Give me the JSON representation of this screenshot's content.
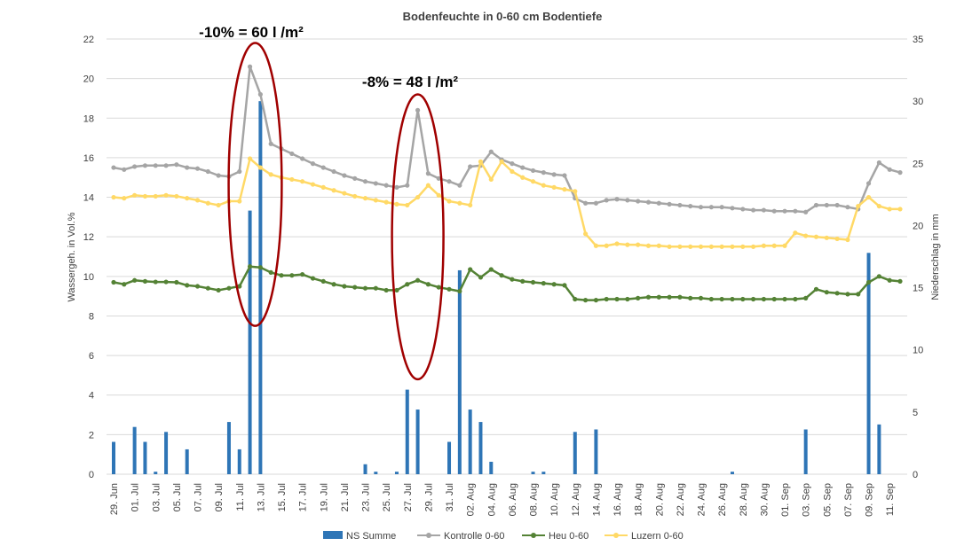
{
  "chart_data": {
    "type": "bar+line",
    "title": "Bodenfeuchte in 0-60 cm Bodentiefe",
    "ylabel_left": "Wassergeh. in  Vol.%",
    "ylabel_right": "Niederschlag in mm",
    "ylim_left": [
      0,
      22
    ],
    "ylim_right": [
      0,
      35
    ],
    "yticks_left": [
      "0",
      "2",
      "4",
      "6",
      "8",
      "10",
      "12",
      "14",
      "16",
      "18",
      "20",
      "22"
    ],
    "yticks_right": [
      "0",
      "5",
      "10",
      "15",
      "20",
      "25",
      "30",
      "35"
    ],
    "dates": [
      "29. Jun",
      "30. Jun",
      "01. Jul",
      "02. Jul",
      "03. Jul",
      "04. Jul",
      "05. Jul",
      "06. Jul",
      "07. Jul",
      "08. Jul",
      "09. Jul",
      "10. Jul",
      "11. Jul",
      "12. Jul",
      "13. Jul",
      "14. Jul",
      "15. Jul",
      "16. Jul",
      "17. Jul",
      "18. Jul",
      "19. Jul",
      "20. Jul",
      "21. Jul",
      "22. Jul",
      "23. Jul",
      "24. Jul",
      "25. Jul",
      "26. Jul",
      "27. Jul",
      "28. Jul",
      "29. Jul",
      "30. Jul",
      "31. Jul",
      "01. Aug",
      "02. Aug",
      "03. Aug",
      "04. Aug",
      "05. Aug",
      "06. Aug",
      "07. Aug",
      "08. Aug",
      "09. Aug",
      "10. Aug",
      "11. Aug",
      "12. Aug",
      "13. Aug",
      "14. Aug",
      "15. Aug",
      "16. Aug",
      "17. Aug",
      "18. Aug",
      "19. Aug",
      "20. Aug",
      "21. Aug",
      "22. Aug",
      "23. Aug",
      "24. Aug",
      "25. Aug",
      "26. Aug",
      "27. Aug",
      "28. Aug",
      "29. Aug",
      "30. Aug",
      "31. Aug",
      "01. Sep",
      "02. Sep",
      "03. Sep",
      "04. Sep",
      "05. Sep",
      "06. Sep",
      "07. Sep",
      "08. Sep",
      "09. Sep",
      "10. Sep",
      "11. Sep",
      "12. Sep"
    ],
    "xtick_labels": [
      "29. Jun",
      "01. Jul",
      "03. Jul",
      "05. Jul",
      "07. Jul",
      "09. Jul",
      "11. Jul",
      "13. Jul",
      "15. Jul",
      "17. Jul",
      "19. Jul",
      "21. Jul",
      "23. Jul",
      "25. Jul",
      "27. Jul",
      "29. Jul",
      "31. Jul",
      "02. Aug",
      "04. Aug",
      "06. Aug",
      "08. Aug",
      "10. Aug",
      "12. Aug",
      "14. Aug",
      "16. Aug",
      "18. Aug",
      "20. Aug",
      "22. Aug",
      "24. Aug",
      "26. Aug",
      "28. Aug",
      "30. Aug",
      "01. Sep",
      "03. Sep",
      "05. Sep",
      "07. Sep",
      "09. Sep",
      "11. Sep"
    ],
    "series": [
      {
        "name": "NS Summe",
        "type": "bar",
        "axis": "right",
        "color": "#2e75b6",
        "values": [
          2.6,
          0,
          3.8,
          2.6,
          0.2,
          3.4,
          0,
          2.0,
          0,
          0,
          0,
          4.2,
          2.0,
          21.2,
          30.0,
          0,
          0,
          0,
          0,
          0,
          0,
          0,
          0,
          0,
          0.8,
          0.2,
          0,
          0.2,
          6.8,
          5.2,
          0,
          0,
          2.6,
          16.4,
          5.2,
          4.2,
          1.0,
          0,
          0,
          0,
          0.2,
          0.2,
          0,
          0,
          3.4,
          0,
          3.6,
          0,
          0,
          0,
          0,
          0,
          0,
          0,
          0,
          0,
          0,
          0,
          0,
          0.2,
          0,
          0,
          0,
          0,
          0,
          0,
          3.6,
          0,
          0,
          0,
          0,
          0,
          17.8,
          4.0,
          0,
          0
        ]
      },
      {
        "name": "Kontrolle 0-60",
        "type": "line",
        "axis": "left",
        "color": "#a5a5a5",
        "values": [
          15.5,
          15.4,
          15.55,
          15.6,
          15.6,
          15.6,
          15.65,
          15.5,
          15.45,
          15.3,
          15.1,
          15.05,
          15.3,
          20.6,
          19.2,
          16.7,
          16.45,
          16.2,
          15.95,
          15.7,
          15.5,
          15.3,
          15.1,
          14.95,
          14.8,
          14.7,
          14.6,
          14.5,
          14.6,
          18.4,
          15.2,
          14.95,
          14.8,
          14.6,
          15.55,
          15.6,
          16.3,
          15.9,
          15.7,
          15.5,
          15.35,
          15.25,
          15.15,
          15.1,
          13.95,
          13.7,
          13.7,
          13.85,
          13.9,
          13.85,
          13.8,
          13.75,
          13.7,
          13.65,
          13.6,
          13.55,
          13.5,
          13.5,
          13.5,
          13.45,
          13.4,
          13.35,
          13.35,
          13.3,
          13.3,
          13.3,
          13.25,
          13.6,
          13.6,
          13.6,
          13.5,
          13.4,
          14.7,
          15.75,
          15.4,
          15.25
        ]
      },
      {
        "name": "Heu 0-60",
        "type": "line",
        "axis": "left",
        "color": "#548235",
        "values": [
          9.7,
          9.6,
          9.8,
          9.75,
          9.72,
          9.72,
          9.7,
          9.55,
          9.5,
          9.4,
          9.3,
          9.4,
          9.5,
          10.5,
          10.45,
          10.2,
          10.05,
          10.05,
          10.1,
          9.9,
          9.75,
          9.6,
          9.5,
          9.45,
          9.4,
          9.4,
          9.3,
          9.3,
          9.6,
          9.8,
          9.6,
          9.45,
          9.35,
          9.25,
          10.35,
          9.95,
          10.35,
          10.05,
          9.85,
          9.75,
          9.7,
          9.65,
          9.6,
          9.55,
          8.85,
          8.8,
          8.8,
          8.85,
          8.85,
          8.85,
          8.9,
          8.95,
          8.95,
          8.95,
          8.95,
          8.9,
          8.9,
          8.85,
          8.85,
          8.85,
          8.85,
          8.85,
          8.85,
          8.85,
          8.85,
          8.85,
          8.9,
          9.35,
          9.2,
          9.15,
          9.1,
          9.1,
          9.7,
          10.0,
          9.8,
          9.75
        ]
      },
      {
        "name": "Luzern 0-60",
        "type": "line",
        "axis": "left",
        "color": "#ffd966",
        "values": [
          14.0,
          13.95,
          14.1,
          14.05,
          14.05,
          14.1,
          14.05,
          13.95,
          13.85,
          13.7,
          13.6,
          13.8,
          13.8,
          15.95,
          15.5,
          15.15,
          15.0,
          14.9,
          14.8,
          14.65,
          14.5,
          14.35,
          14.2,
          14.05,
          13.95,
          13.85,
          13.75,
          13.65,
          13.6,
          14.0,
          14.6,
          14.1,
          13.8,
          13.7,
          13.6,
          15.8,
          14.9,
          15.8,
          15.3,
          15.0,
          14.8,
          14.6,
          14.5,
          14.4,
          14.3,
          12.15,
          11.55,
          11.55,
          11.65,
          11.6,
          11.6,
          11.55,
          11.55,
          11.5,
          11.5,
          11.5,
          11.5,
          11.5,
          11.5,
          11.5,
          11.5,
          11.5,
          11.55,
          11.55,
          11.55,
          12.2,
          12.05,
          12.0,
          11.95,
          11.9,
          11.85,
          13.55,
          14.0,
          13.55,
          13.4,
          13.4
        ]
      }
    ],
    "legend_position": "bottom",
    "annotations": [
      {
        "text": "-10% = 60 l /m²",
        "target_dates": [
          "12. Jul",
          "13. Jul"
        ]
      },
      {
        "text": "-8% = 48 l /m²",
        "target_dates": [
          "28. Jul"
        ]
      }
    ],
    "highlight_ellipses": [
      {
        "date_range": [
          "12. Jul",
          "13. Jul"
        ],
        "value_range": [
          7.5,
          21.8
        ],
        "color": "#a00000"
      },
      {
        "date_range": [
          "28. Jul",
          "28. Jul"
        ],
        "value_range": [
          4.8,
          19.2
        ],
        "color": "#a00000"
      }
    ]
  }
}
